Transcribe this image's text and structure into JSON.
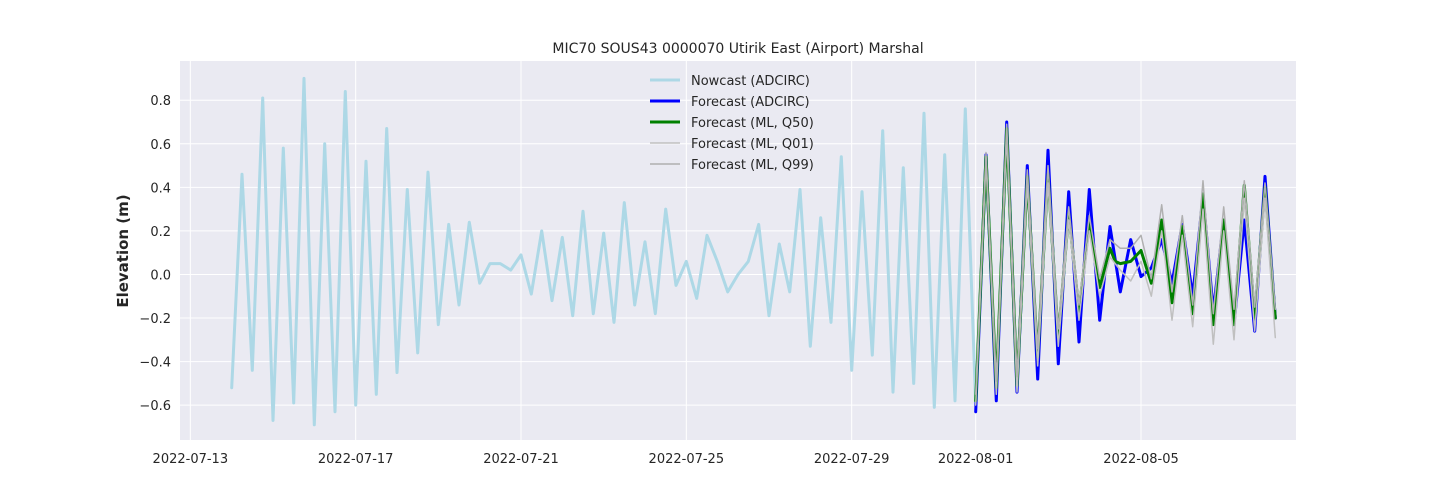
{
  "chart_data": {
    "type": "line",
    "title": "MIC70 SOUS43 0000070 Utirik East (Airport) Marshal",
    "xlabel": "",
    "ylabel": "Elevation (m)",
    "x_is_date": true,
    "xlim": [
      "2022-07-12T18:00",
      "2022-08-08T18:00"
    ],
    "ylim": [
      -0.76,
      0.98
    ],
    "xticks": [
      "2022-07-13",
      "2022-07-17",
      "2022-07-21",
      "2022-07-25",
      "2022-07-29",
      "2022-08-01",
      "2022-08-05"
    ],
    "yticks": [
      -0.6,
      -0.4,
      -0.2,
      0.0,
      0.2,
      0.4,
      0.6,
      0.8
    ],
    "ytick_labels": [
      "−0.6",
      "−0.4",
      "−0.2",
      "0.0",
      "0.2",
      "0.4",
      "0.6",
      "0.8"
    ],
    "grid": true,
    "legend_position": "top-center",
    "plot_bg": "#eaeaf2",
    "series": [
      {
        "name": "Nowcast (ADCIRC)",
        "color": "#add8e6",
        "width": 3,
        "x": [
          "2022-07-14T00:00",
          "2022-07-14T06:00",
          "2022-07-14T12:00",
          "2022-07-14T18:00",
          "2022-07-15T00:00",
          "2022-07-15T06:00",
          "2022-07-15T12:00",
          "2022-07-15T18:00",
          "2022-07-16T00:00",
          "2022-07-16T06:00",
          "2022-07-16T12:00",
          "2022-07-16T18:00",
          "2022-07-17T00:00",
          "2022-07-17T06:00",
          "2022-07-17T12:00",
          "2022-07-17T18:00",
          "2022-07-18T00:00",
          "2022-07-18T06:00",
          "2022-07-18T12:00",
          "2022-07-18T18:00",
          "2022-07-19T00:00",
          "2022-07-19T06:00",
          "2022-07-19T12:00",
          "2022-07-19T18:00",
          "2022-07-20T00:00",
          "2022-07-20T06:00",
          "2022-07-20T12:00",
          "2022-07-20T18:00",
          "2022-07-21T00:00",
          "2022-07-21T06:00",
          "2022-07-21T12:00",
          "2022-07-21T18:00",
          "2022-07-22T00:00",
          "2022-07-22T06:00",
          "2022-07-22T12:00",
          "2022-07-22T18:00",
          "2022-07-23T00:00",
          "2022-07-23T06:00",
          "2022-07-23T12:00",
          "2022-07-23T18:00",
          "2022-07-24T00:00",
          "2022-07-24T06:00",
          "2022-07-24T12:00",
          "2022-07-24T18:00",
          "2022-07-25T00:00",
          "2022-07-25T06:00",
          "2022-07-25T12:00",
          "2022-07-25T18:00",
          "2022-07-26T00:00",
          "2022-07-26T06:00",
          "2022-07-26T12:00",
          "2022-07-26T18:00",
          "2022-07-27T00:00",
          "2022-07-27T06:00",
          "2022-07-27T12:00",
          "2022-07-27T18:00",
          "2022-07-28T00:00",
          "2022-07-28T06:00",
          "2022-07-28T12:00",
          "2022-07-28T18:00",
          "2022-07-29T00:00",
          "2022-07-29T06:00",
          "2022-07-29T12:00",
          "2022-07-29T18:00",
          "2022-07-30T00:00",
          "2022-07-30T06:00",
          "2022-07-30T12:00",
          "2022-07-30T18:00",
          "2022-07-31T00:00",
          "2022-07-31T06:00",
          "2022-07-31T12:00",
          "2022-07-31T18:00",
          "2022-08-01T00:00"
        ],
        "y": [
          -0.52,
          0.46,
          -0.44,
          0.81,
          -0.67,
          0.58,
          -0.59,
          0.9,
          -0.69,
          0.6,
          -0.63,
          0.84,
          -0.6,
          0.52,
          -0.55,
          0.67,
          -0.45,
          0.39,
          -0.36,
          0.47,
          -0.23,
          0.23,
          -0.14,
          0.24,
          -0.04,
          0.05,
          0.05,
          0.02,
          0.09,
          -0.09,
          0.2,
          -0.12,
          0.17,
          -0.19,
          0.29,
          -0.18,
          0.19,
          -0.22,
          0.33,
          -0.14,
          0.15,
          -0.18,
          0.3,
          -0.05,
          0.06,
          -0.11,
          0.18,
          0.06,
          -0.08,
          0.0,
          0.06,
          0.23,
          -0.19,
          0.14,
          -0.08,
          0.39,
          -0.33,
          0.26,
          -0.22,
          0.54,
          -0.44,
          0.38,
          -0.37,
          0.66,
          -0.54,
          0.49,
          -0.5,
          0.74,
          -0.61,
          0.55,
          -0.58,
          0.76,
          -0.6
        ]
      },
      {
        "name": "Forecast (ADCIRC)",
        "color": "#0000ff",
        "width": 3,
        "x": [
          "2022-08-01T00:00",
          "2022-08-01T06:00",
          "2022-08-01T12:00",
          "2022-08-01T18:00",
          "2022-08-02T00:00",
          "2022-08-02T06:00",
          "2022-08-02T12:00",
          "2022-08-02T18:00",
          "2022-08-03T00:00",
          "2022-08-03T06:00",
          "2022-08-03T12:00",
          "2022-08-03T18:00",
          "2022-08-04T00:00",
          "2022-08-04T06:00",
          "2022-08-04T12:00",
          "2022-08-04T18:00",
          "2022-08-05T00:00",
          "2022-08-05T06:00",
          "2022-08-05T12:00",
          "2022-08-05T18:00",
          "2022-08-06T00:00",
          "2022-08-06T06:00",
          "2022-08-06T12:00",
          "2022-08-06T18:00",
          "2022-08-07T00:00",
          "2022-08-07T06:00",
          "2022-08-07T12:00",
          "2022-08-07T18:00",
          "2022-08-08T00:00",
          "2022-08-08T06:00"
        ],
        "y": [
          -0.63,
          0.55,
          -0.58,
          0.7,
          -0.54,
          0.5,
          -0.48,
          0.57,
          -0.41,
          0.38,
          -0.31,
          0.39,
          -0.21,
          0.22,
          -0.08,
          0.16,
          -0.01,
          0.03,
          0.16,
          -0.04,
          0.23,
          -0.1,
          0.36,
          -0.17,
          0.25,
          -0.23,
          0.25,
          -0.26,
          0.45,
          -0.2
        ]
      },
      {
        "name": "Forecast (ML, Q50)",
        "color": "#008000",
        "width": 3,
        "x": [
          "2022-08-01T00:00",
          "2022-08-01T06:00",
          "2022-08-01T12:00",
          "2022-08-01T18:00",
          "2022-08-02T00:00",
          "2022-08-02T06:00",
          "2022-08-02T12:00",
          "2022-08-02T18:00",
          "2022-08-03T00:00",
          "2022-08-03T06:00",
          "2022-08-03T12:00",
          "2022-08-03T18:00",
          "2022-08-04T00:00",
          "2022-08-04T06:00",
          "2022-08-04T09:00",
          "2022-08-04T12:00",
          "2022-08-04T18:00",
          "2022-08-05T00:00",
          "2022-08-05T06:00",
          "2022-08-05T12:00",
          "2022-08-05T18:00",
          "2022-08-06T00:00",
          "2022-08-06T06:00",
          "2022-08-06T12:00",
          "2022-08-06T18:00",
          "2022-08-07T00:00",
          "2022-08-07T06:00",
          "2022-08-07T12:00",
          "2022-08-07T18:00",
          "2022-08-08T00:00",
          "2022-08-08T06:00"
        ],
        "y": [
          -0.58,
          0.54,
          -0.52,
          0.67,
          -0.51,
          0.45,
          -0.38,
          0.46,
          -0.29,
          0.28,
          -0.17,
          0.24,
          -0.06,
          0.12,
          0.06,
          0.05,
          0.06,
          0.11,
          -0.04,
          0.25,
          -0.13,
          0.22,
          -0.18,
          0.37,
          -0.23,
          0.25,
          -0.23,
          0.41,
          -0.2,
          0.4,
          -0.2
        ]
      },
      {
        "name": "Forecast (ML, Q01)",
        "color": "#c0c0c0",
        "width": 1.5,
        "x": [
          "2022-08-01T00:00",
          "2022-08-01T06:00",
          "2022-08-01T12:00",
          "2022-08-01T18:00",
          "2022-08-02T00:00",
          "2022-08-02T06:00",
          "2022-08-02T12:00",
          "2022-08-02T18:00",
          "2022-08-03T00:00",
          "2022-08-03T06:00",
          "2022-08-03T12:00",
          "2022-08-03T18:00",
          "2022-08-04T00:00",
          "2022-08-04T06:00",
          "2022-08-04T12:00",
          "2022-08-04T18:00",
          "2022-08-05T00:00",
          "2022-08-05T06:00",
          "2022-08-05T12:00",
          "2022-08-05T18:00",
          "2022-08-06T00:00",
          "2022-08-06T06:00",
          "2022-08-06T12:00",
          "2022-08-06T18:00",
          "2022-08-07T00:00",
          "2022-08-07T06:00",
          "2022-08-07T12:00",
          "2022-08-07T18:00",
          "2022-08-08T00:00",
          "2022-08-08T06:00"
        ],
        "y": [
          -0.6,
          0.52,
          -0.55,
          0.64,
          -0.54,
          0.42,
          -0.42,
          0.42,
          -0.33,
          0.25,
          -0.21,
          0.2,
          -0.1,
          0.08,
          0.02,
          -0.03,
          0.06,
          -0.1,
          0.2,
          -0.21,
          0.18,
          -0.24,
          0.3,
          -0.32,
          0.2,
          -0.3,
          0.35,
          -0.26,
          0.35,
          -0.29
        ]
      },
      {
        "name": "Forecast (ML, Q99)",
        "color": "#b0b0b0",
        "width": 1.5,
        "x": [
          "2022-08-01T00:00",
          "2022-08-01T06:00",
          "2022-08-01T12:00",
          "2022-08-01T18:00",
          "2022-08-02T00:00",
          "2022-08-02T06:00",
          "2022-08-02T12:00",
          "2022-08-02T18:00",
          "2022-08-03T00:00",
          "2022-08-03T06:00",
          "2022-08-03T12:00",
          "2022-08-03T18:00",
          "2022-08-04T00:00",
          "2022-08-04T06:00",
          "2022-08-04T12:00",
          "2022-08-04T18:00",
          "2022-08-05T00:00",
          "2022-08-05T06:00",
          "2022-08-05T12:00",
          "2022-08-05T18:00",
          "2022-08-06T00:00",
          "2022-08-06T06:00",
          "2022-08-06T12:00",
          "2022-08-06T18:00",
          "2022-08-07T00:00",
          "2022-08-07T06:00",
          "2022-08-07T12:00",
          "2022-08-07T18:00",
          "2022-08-08T00:00",
          "2022-08-08T06:00"
        ],
        "y": [
          -0.55,
          0.56,
          -0.49,
          0.69,
          -0.47,
          0.48,
          -0.34,
          0.5,
          -0.25,
          0.31,
          -0.14,
          0.27,
          -0.02,
          0.16,
          0.12,
          0.12,
          0.18,
          -0.02,
          0.32,
          -0.08,
          0.27,
          -0.14,
          0.43,
          -0.18,
          0.31,
          -0.16,
          0.43,
          -0.15,
          0.42,
          -0.16
        ]
      }
    ]
  }
}
